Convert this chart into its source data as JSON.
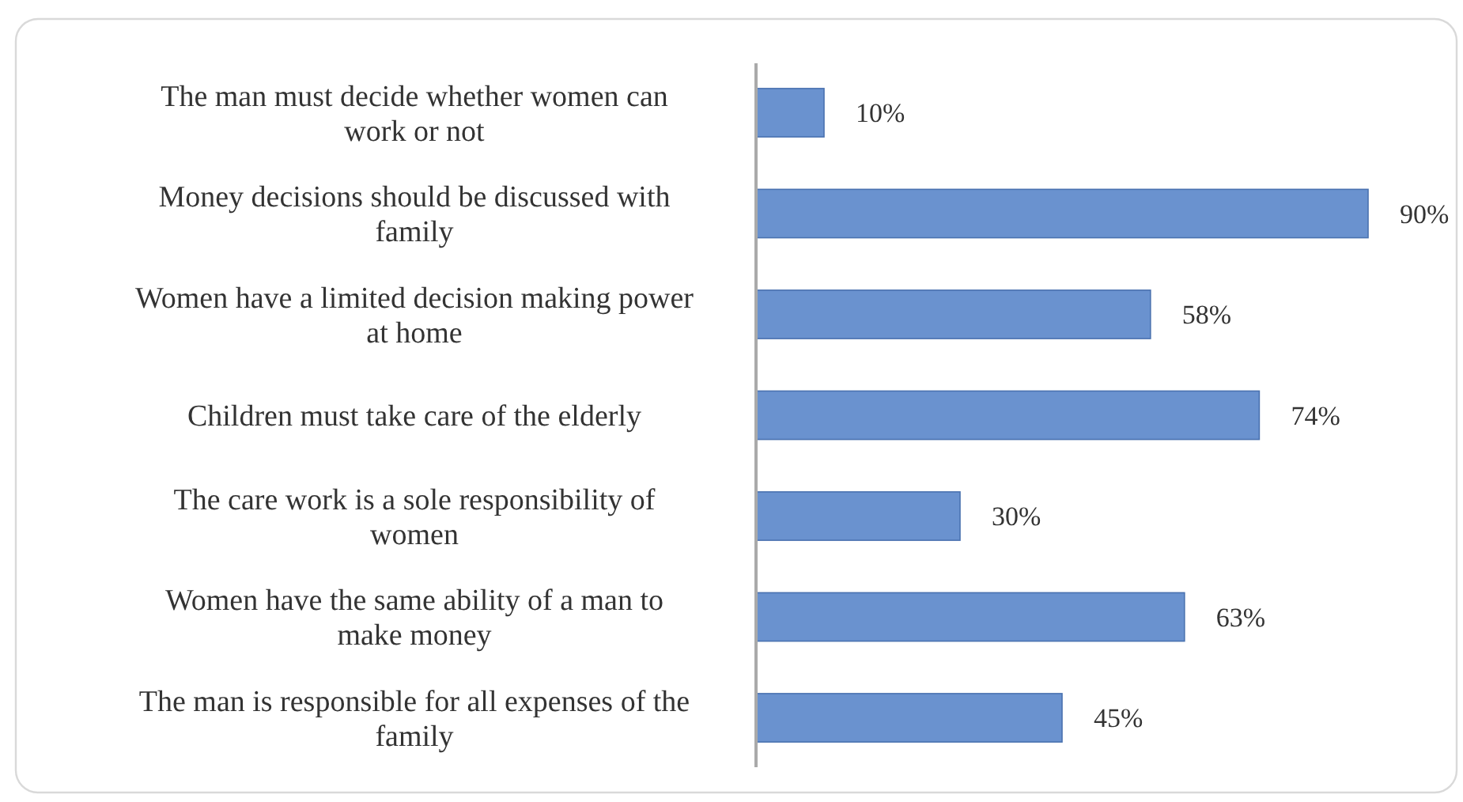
{
  "chart_data": {
    "type": "bar",
    "orientation": "horizontal",
    "categories": [
      "The man must decide whether women can work or not",
      "Money decisions should be discussed with family",
      "Women have a limited decision making power at home",
      "Children must take care of the elderly",
      "The care work is a sole responsibility of women",
      "Women have the same ability of a man to make money",
      "The man is responsible for all expenses of the family"
    ],
    "values": [
      10,
      90,
      58,
      74,
      30,
      63,
      45
    ],
    "value_labels": [
      "10%",
      "90%",
      "58%",
      "74%",
      "30%",
      "63%",
      "45%"
    ],
    "color": "#6a92cf"
  }
}
